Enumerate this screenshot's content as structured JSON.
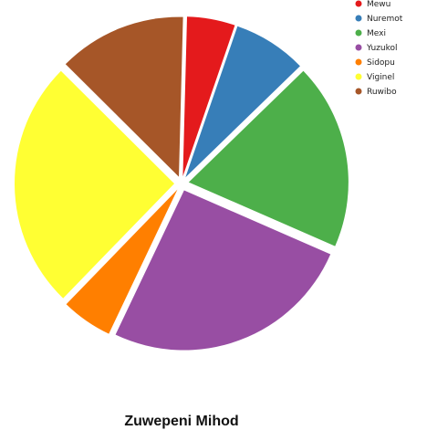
{
  "chart_data": {
    "type": "pie",
    "title": "Zuwepeni Mihod",
    "legend_position": "top-right",
    "categories": [
      "Mewu",
      "Nuremot",
      "Mexi",
      "Yuzukol",
      "Sidopu",
      "Viginel",
      "Ruwibo"
    ],
    "values": [
      4.5,
      6.9,
      17.4,
      23.6,
      4.8,
      23.3,
      12.0
    ],
    "colors": [
      "#e41a1c",
      "#377eb8",
      "#4daf4a",
      "#984ea3",
      "#ff7f00",
      "#ffff33",
      "#a65628"
    ]
  }
}
